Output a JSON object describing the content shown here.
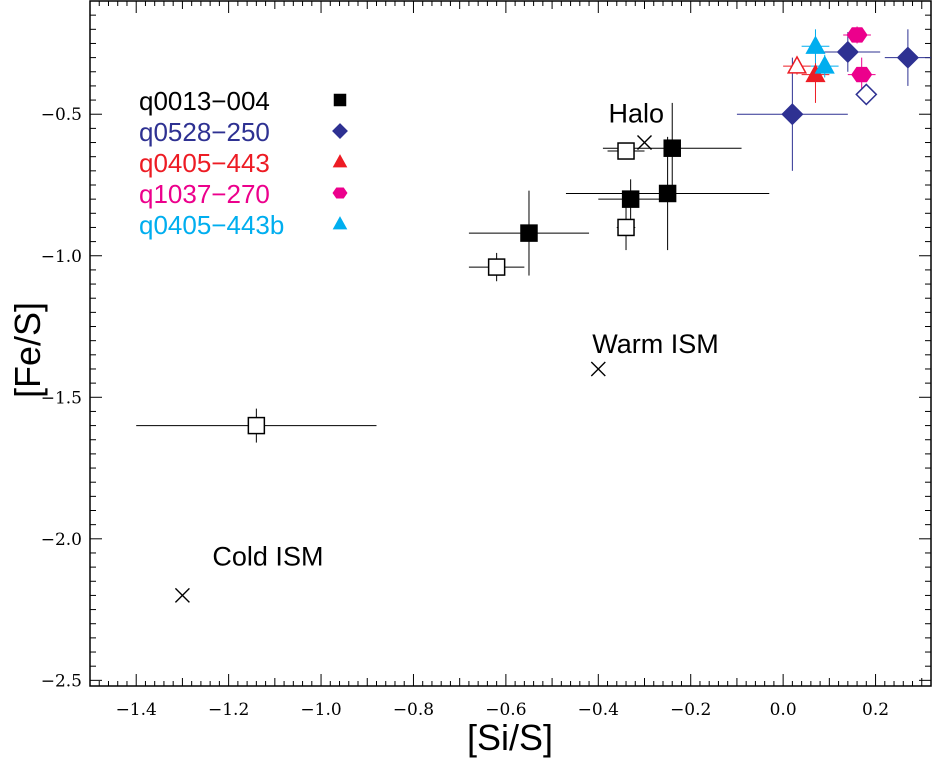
{
  "chart_data": {
    "type": "scatter",
    "xlabel": "[Si/S]",
    "ylabel": "[Fe/S]",
    "xlim": [
      -1.5,
      0.32
    ],
    "ylim": [
      -2.52,
      -0.1
    ],
    "x_ticks": [
      -1.4,
      -1.2,
      -1.0,
      -0.8,
      -0.6,
      -0.4,
      -0.2,
      0.0,
      0.2
    ],
    "x_tick_labels": [
      "−1.4",
      "−1.2",
      "−1.0",
      "−0.8",
      "−0.6",
      "−0.4",
      "−0.2",
      "0.0",
      "0.2"
    ],
    "y_ticks": [
      -0.5,
      -1.0,
      -1.5,
      -2.0,
      -2.5
    ],
    "y_tick_labels": [
      "−0.5",
      "−1.0",
      "−1.5",
      "−2.0",
      "−2.5"
    ],
    "grid": false,
    "legend_position": "top-left",
    "series": [
      {
        "name": "q0013−004",
        "color": "#000000",
        "marker": "square",
        "points": [
          {
            "x": -0.55,
            "y": -0.92,
            "xerr": 0.13,
            "yerr": 0.15,
            "filled": true
          },
          {
            "x": -0.33,
            "y": -0.8,
            "xerr": 0.07,
            "yerr": 0.07,
            "filled": true
          },
          {
            "x": -0.25,
            "y": -0.78,
            "xerr": 0.22,
            "yerr": 0.2,
            "filled": true
          },
          {
            "x": -0.24,
            "y": -0.62,
            "xerr": 0.15,
            "yerr": 0.16,
            "filled": true
          },
          {
            "x": -0.62,
            "y": -1.04,
            "xerr": 0.06,
            "yerr": 0.05,
            "filled": false
          },
          {
            "x": -0.34,
            "y": -0.9,
            "xerr": 0.02,
            "yerr": 0.08,
            "filled": false
          },
          {
            "x": -0.34,
            "y": -0.63,
            "xerr": 0.04,
            "yerr": 0.03,
            "filled": false
          },
          {
            "x": -1.14,
            "y": -1.6,
            "xerr": 0.26,
            "yerr": 0.06,
            "filled": false
          }
        ]
      },
      {
        "name": "q0528−250",
        "color": "#2e3192",
        "marker": "diamond",
        "points": [
          {
            "x": 0.02,
            "y": -0.5,
            "xerr": 0.12,
            "yerr": 0.2,
            "filled": true
          },
          {
            "x": 0.14,
            "y": -0.28,
            "xerr": 0.07,
            "yerr": 0.07,
            "filled": true
          },
          {
            "x": 0.27,
            "y": -0.3,
            "xerr": 0.05,
            "yerr": 0.1,
            "filled": true
          },
          {
            "x": 0.18,
            "y": -0.43,
            "xerr": 0.0,
            "yerr": 0.0,
            "filled": false
          }
        ]
      },
      {
        "name": "q0405−443",
        "color": "#ed1c24",
        "marker": "triangle",
        "points": [
          {
            "x": 0.07,
            "y": -0.36,
            "xerr": 0.03,
            "yerr": 0.1,
            "filled": true
          },
          {
            "x": 0.03,
            "y": -0.33,
            "xerr": 0.03,
            "yerr": 0.03,
            "filled": false
          }
        ]
      },
      {
        "name": "q1037−270",
        "color": "#ec008c",
        "marker": "hexagon",
        "points": [
          {
            "x": 0.16,
            "y": -0.22,
            "xerr": 0.03,
            "yerr": 0.03,
            "filled": true
          },
          {
            "x": 0.17,
            "y": -0.36,
            "xerr": 0.03,
            "yerr": 0.06,
            "filled": true
          }
        ]
      },
      {
        "name": "q0405−443b",
        "color": "#00aeef",
        "marker": "triangle",
        "points": [
          {
            "x": 0.07,
            "y": -0.26,
            "xerr": 0.03,
            "yerr": 0.06,
            "filled": true
          },
          {
            "x": 0.09,
            "y": -0.33,
            "xerr": 0.03,
            "yerr": 0.04,
            "filled": true
          }
        ]
      }
    ],
    "references": [
      {
        "label": "Halo",
        "x": -0.3,
        "y": -0.6,
        "marker": "cross"
      },
      {
        "label": "Warm ISM",
        "x": -0.4,
        "y": -1.4,
        "marker": "cross"
      },
      {
        "label": "Cold ISM",
        "x": -1.3,
        "y": -2.2,
        "marker": "cross"
      }
    ]
  }
}
